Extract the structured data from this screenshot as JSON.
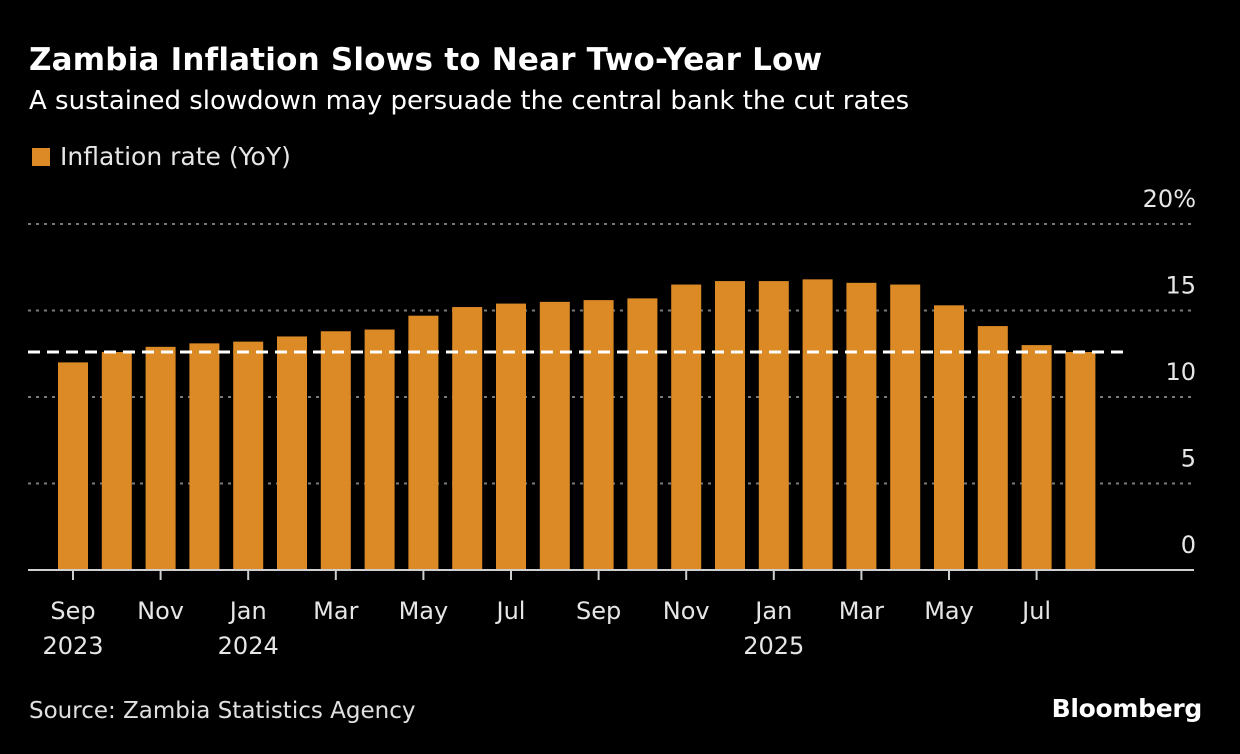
{
  "chart_data": {
    "type": "bar",
    "title": "Zambia Inflation Slows to Near Two-Year Low",
    "subtitle": "A sustained slowdown may persuade the central bank the cut rates",
    "xlabel": "",
    "ylabel": "",
    "legend": {
      "position": "top-left",
      "entries": [
        {
          "label": "Inflation rate (YoY)",
          "color": "#dc8a26"
        }
      ]
    },
    "categories": [
      "Sep 2023",
      "Oct 2023",
      "Nov 2023",
      "Dec 2023",
      "Jan 2024",
      "Feb 2024",
      "Mar 2024",
      "Apr 2024",
      "May 2024",
      "Jun 2024",
      "Jul 2024",
      "Aug 2024",
      "Sep 2024",
      "Oct 2024",
      "Nov 2024",
      "Dec 2024",
      "Jan 2025",
      "Feb 2025",
      "Mar 2025",
      "Apr 2025",
      "May 2025",
      "Jun 2025",
      "Jul 2025",
      "Aug 2025"
    ],
    "series": [
      {
        "name": "Inflation rate (YoY)",
        "color": "#dc8a26",
        "values": [
          12.0,
          12.6,
          12.9,
          13.1,
          13.2,
          13.5,
          13.8,
          13.9,
          14.7,
          15.2,
          15.4,
          15.5,
          15.6,
          15.7,
          16.5,
          16.7,
          16.7,
          16.8,
          16.6,
          16.5,
          15.3,
          14.1,
          13.0,
          12.6
        ]
      }
    ],
    "reference_line": {
      "value": 12.6,
      "style": "dashed",
      "color": "#ffffff"
    },
    "ylim": [
      0,
      20
    ],
    "yticks": [
      {
        "value": 0,
        "label": "0"
      },
      {
        "value": 5,
        "label": "5"
      },
      {
        "value": 10,
        "label": "10"
      },
      {
        "value": 15,
        "label": "15"
      },
      {
        "value": 20,
        "label": "20%"
      }
    ],
    "xticks": [
      {
        "index": 0,
        "label": "Sep",
        "year": "2023"
      },
      {
        "index": 2,
        "label": "Nov",
        "year": ""
      },
      {
        "index": 4,
        "label": "Jan",
        "year": "2024"
      },
      {
        "index": 6,
        "label": "Mar",
        "year": ""
      },
      {
        "index": 8,
        "label": "May",
        "year": ""
      },
      {
        "index": 10,
        "label": "Jul",
        "year": ""
      },
      {
        "index": 12,
        "label": "Sep",
        "year": ""
      },
      {
        "index": 14,
        "label": "Nov",
        "year": ""
      },
      {
        "index": 16,
        "label": "Jan",
        "year": "2025"
      },
      {
        "index": 18,
        "label": "Mar",
        "year": ""
      },
      {
        "index": 20,
        "label": "May",
        "year": ""
      },
      {
        "index": 22,
        "label": "Jul",
        "year": ""
      }
    ],
    "grid": true,
    "source": "Source: Zambia Statistics Agency",
    "brand": "Bloomberg"
  }
}
